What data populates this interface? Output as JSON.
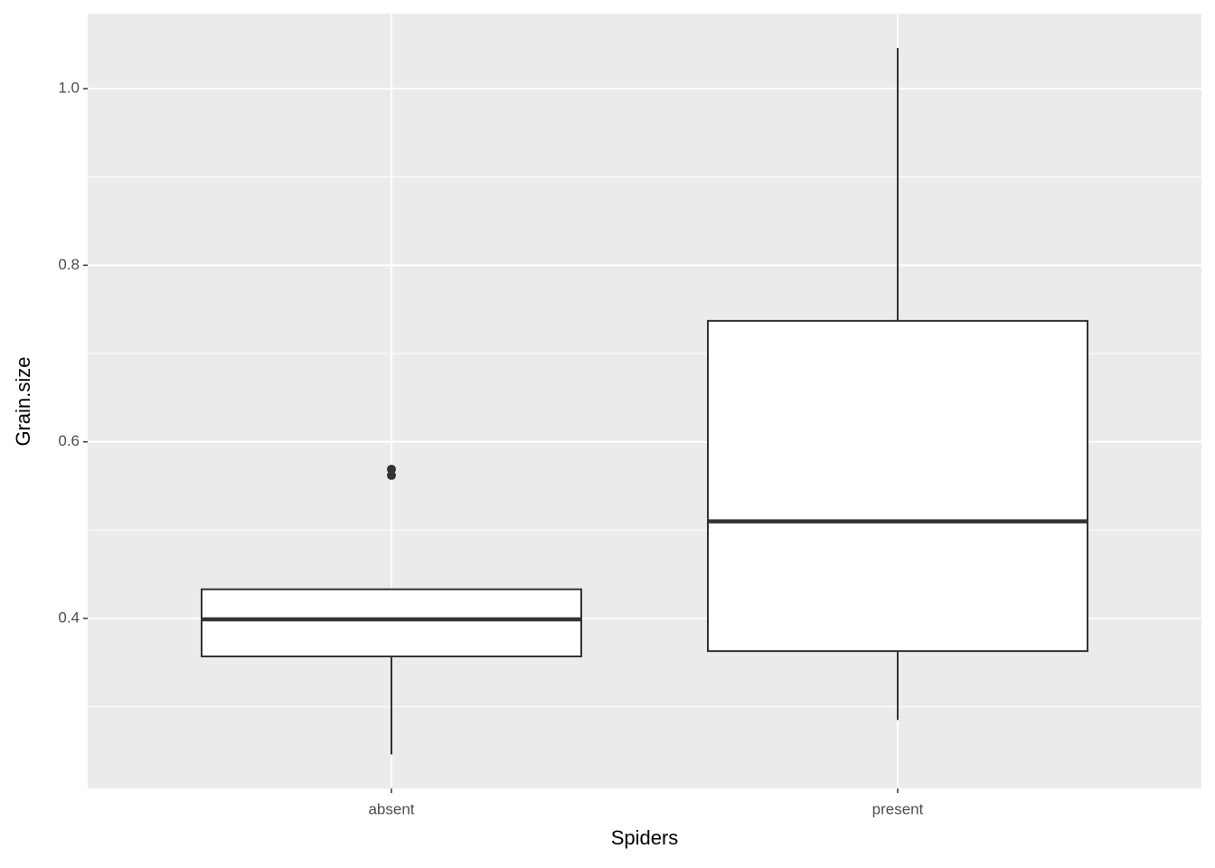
{
  "chart_data": {
    "type": "box",
    "x_label": "Spiders",
    "y_label": "Grain.size",
    "categories": [
      "absent",
      "present"
    ],
    "boxes": [
      {
        "whisker_low": 0.246,
        "q1": 0.357,
        "median": 0.399,
        "q3": 0.433,
        "whisker_high": 0.433,
        "outliers": [
          0.569,
          0.562
        ]
      },
      {
        "whisker_low": 0.285,
        "q1": 0.363,
        "median": 0.51,
        "q3": 0.737,
        "whisker_high": 1.046,
        "outliers": []
      }
    ],
    "ylim": [
      0.2075,
      1.085
    ],
    "yticks": [
      0.4,
      0.6,
      0.8,
      {
        "value": 1.0,
        "label": "1.0"
      }
    ],
    "y_minor_grid": [
      0.3,
      0.5,
      0.7,
      0.9
    ],
    "grid": true,
    "panel_color": "#ebebeb",
    "box_fill": "#ffffff",
    "box_stroke": "#333333"
  }
}
